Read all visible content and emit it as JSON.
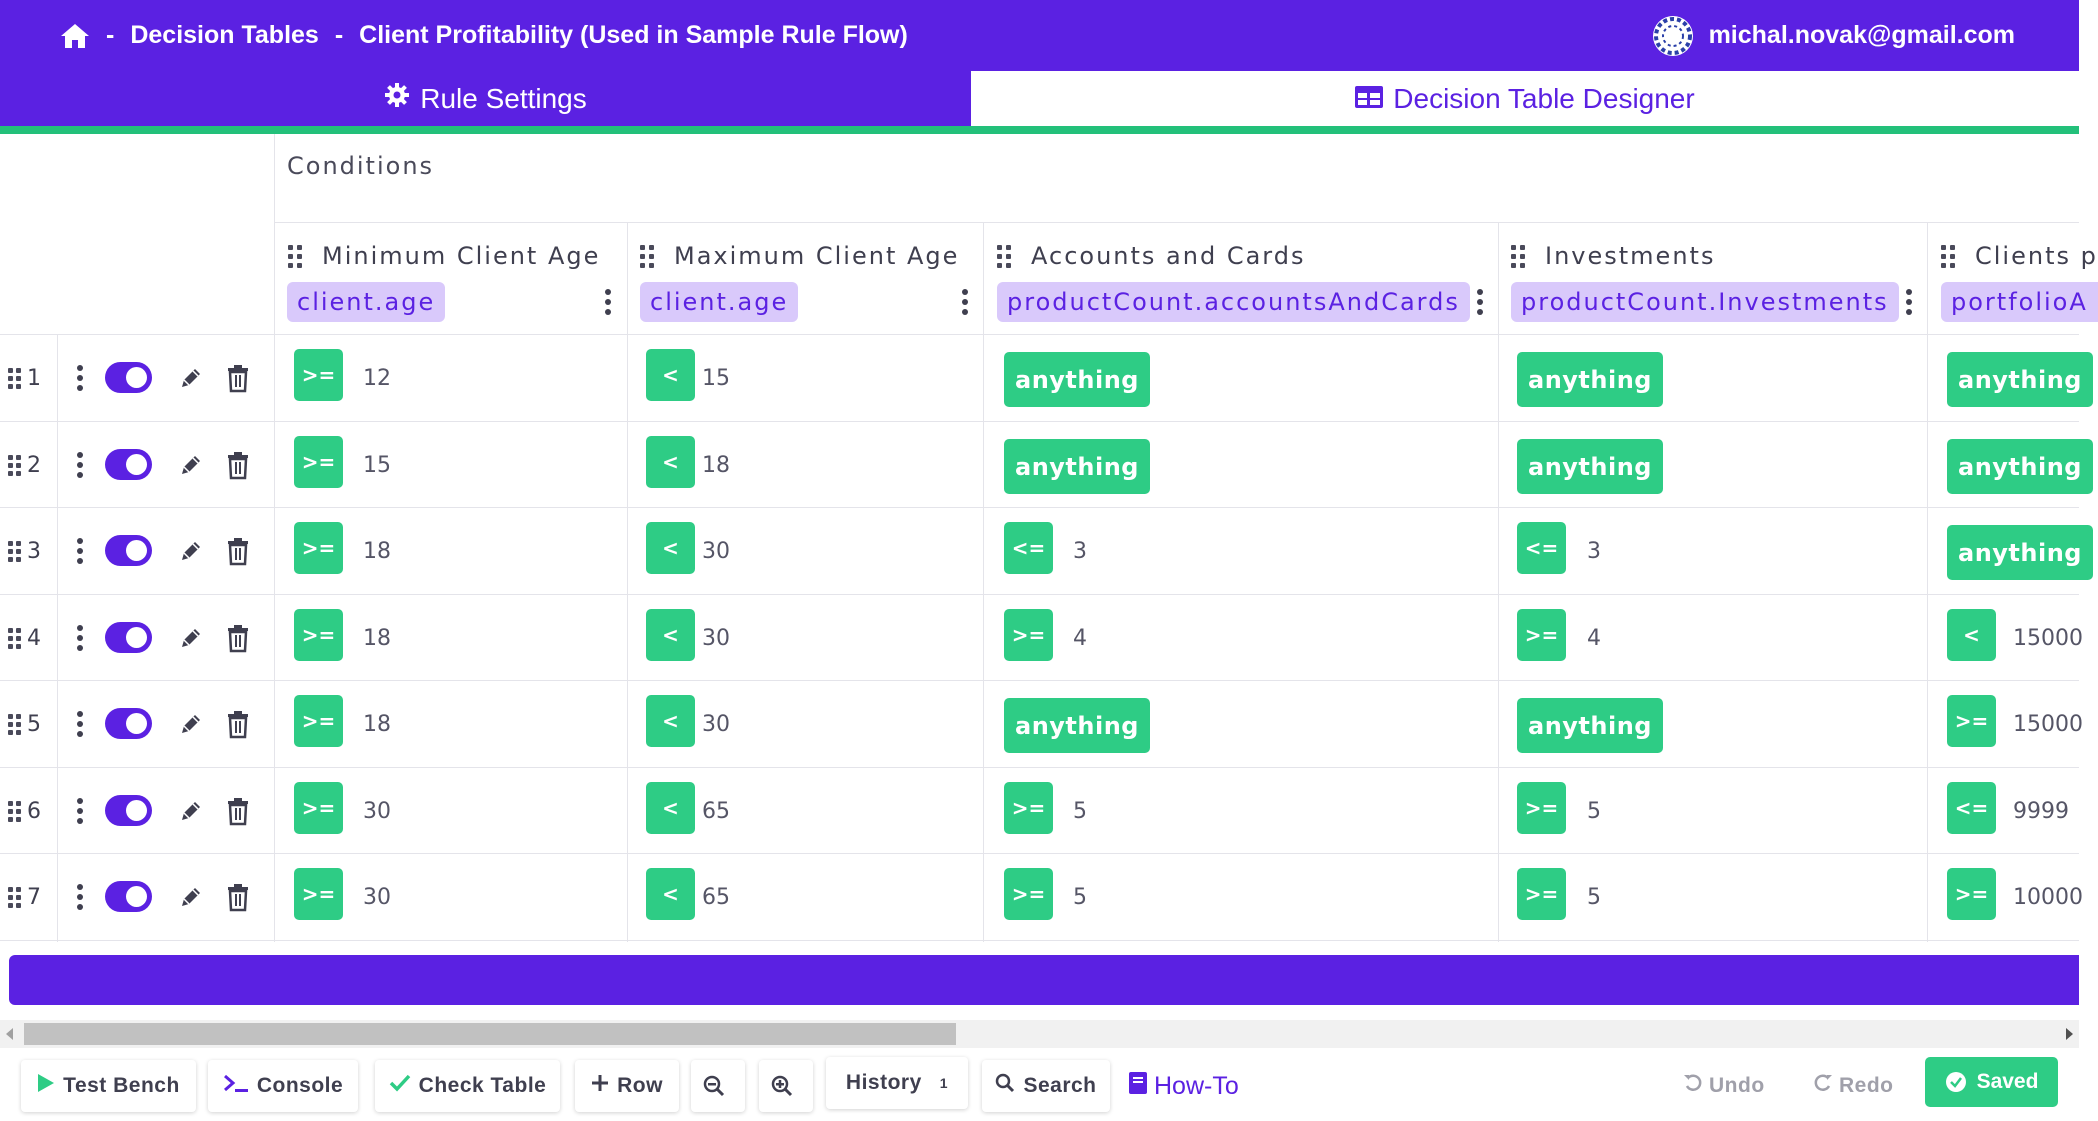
{
  "header": {
    "breadcrumb": [
      "Decision Tables",
      "Client Profitability (Used in Sample Rule Flow)"
    ],
    "separator": "-",
    "user_email": "michal.novak@gmail.com"
  },
  "tabs": [
    {
      "label": "Rule Settings",
      "icon": "gear-icon",
      "active": false
    },
    {
      "label": "Decision Table Designer",
      "icon": "table-icon",
      "active": true
    }
  ],
  "section_label": "Conditions",
  "columns": [
    {
      "title": "Minimum Client Age",
      "attribute": "client.age"
    },
    {
      "title": "Maximum Client Age",
      "attribute": "client.age"
    },
    {
      "title": "Accounts and Cards",
      "attribute": "productCount.accountsAndCards"
    },
    {
      "title": "Investments",
      "attribute": "productCount.Investments"
    },
    {
      "title": "Clients p",
      "attribute": "portfolioA"
    }
  ],
  "rows": [
    {
      "num": "1",
      "cells": [
        {
          "op": ">=",
          "val": "12"
        },
        {
          "op": "<",
          "val": "15"
        },
        {
          "any": "anything"
        },
        {
          "any": "anything"
        },
        {
          "any": "anything"
        }
      ]
    },
    {
      "num": "2",
      "cells": [
        {
          "op": ">=",
          "val": "15"
        },
        {
          "op": "<",
          "val": "18"
        },
        {
          "any": "anything"
        },
        {
          "any": "anything"
        },
        {
          "any": "anything"
        }
      ]
    },
    {
      "num": "3",
      "cells": [
        {
          "op": ">=",
          "val": "18"
        },
        {
          "op": "<",
          "val": "30"
        },
        {
          "op": "<=",
          "val": "3"
        },
        {
          "op": "<=",
          "val": "3"
        },
        {
          "any": "anything"
        }
      ]
    },
    {
      "num": "4",
      "cells": [
        {
          "op": ">=",
          "val": "18"
        },
        {
          "op": "<",
          "val": "30"
        },
        {
          "op": ">=",
          "val": "4"
        },
        {
          "op": ">=",
          "val": "4"
        },
        {
          "op": "<",
          "val": "15000"
        }
      ]
    },
    {
      "num": "5",
      "cells": [
        {
          "op": ">=",
          "val": "18"
        },
        {
          "op": "<",
          "val": "30"
        },
        {
          "any": "anything"
        },
        {
          "any": "anything"
        },
        {
          "op": ">=",
          "val": "15000"
        }
      ]
    },
    {
      "num": "6",
      "cells": [
        {
          "op": ">=",
          "val": "30"
        },
        {
          "op": "<",
          "val": "65"
        },
        {
          "op": ">=",
          "val": "5"
        },
        {
          "op": ">=",
          "val": "5"
        },
        {
          "op": "<=",
          "val": "9999"
        }
      ]
    },
    {
      "num": "7",
      "cells": [
        {
          "op": ">=",
          "val": "30"
        },
        {
          "op": "<",
          "val": "65"
        },
        {
          "op": ">=",
          "val": "5"
        },
        {
          "op": ">=",
          "val": "5"
        },
        {
          "op": ">=",
          "val": "10000"
        }
      ]
    }
  ],
  "toolbar": {
    "test_bench": "Test Bench",
    "console": "Console",
    "check_table": "Check Table",
    "row": "Row",
    "history": "History",
    "history_count": "1",
    "search": "Search",
    "howto": "How-To",
    "undo": "Undo",
    "redo": "Redo",
    "saved": "Saved"
  },
  "colors": {
    "brand": "#5b21e2",
    "green": "#2ecc85",
    "attr_bg": "#d9c9fb",
    "divider_green": "#23c07a"
  }
}
